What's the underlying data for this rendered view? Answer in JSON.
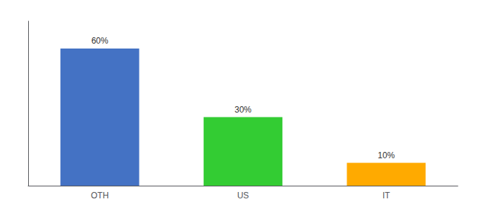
{
  "chart_data": {
    "type": "bar",
    "categories": [
      "OTH",
      "US",
      "IT"
    ],
    "values": [
      60,
      30,
      10
    ],
    "colors": [
      "#4472C4",
      "#33CC33",
      "#FFAA00"
    ],
    "data_labels": true,
    "value_labels": [
      "60%",
      "30%",
      "10%"
    ],
    "ylim": [
      0,
      72
    ],
    "tick_labels": "x",
    "grid": false
  }
}
